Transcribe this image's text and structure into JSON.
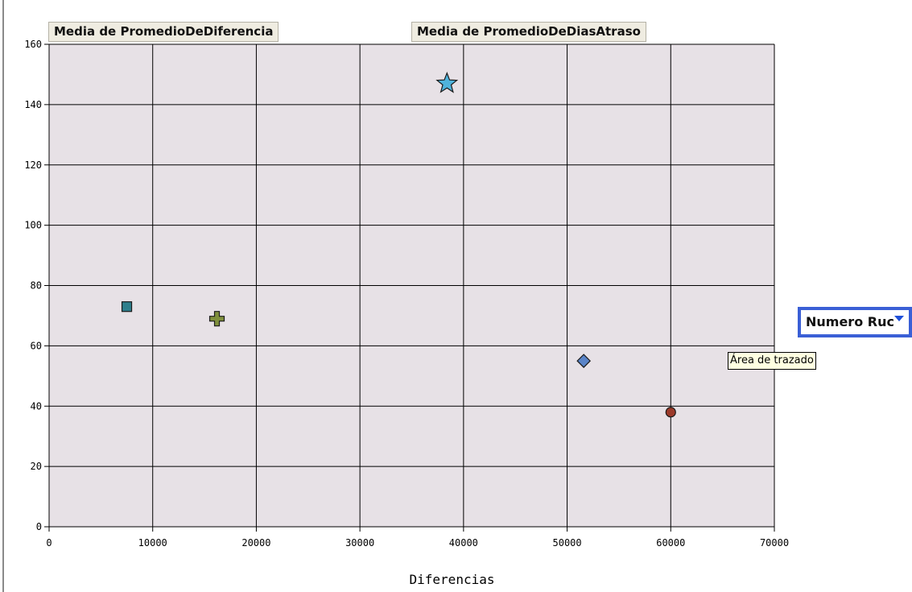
{
  "field_buttons": {
    "x_field": "Media de PromedioDeDiferencia",
    "y_field": "Media de PromedioDeDiasAtraso"
  },
  "legend_field": {
    "label": "Numero Ruc",
    "icon": "chevron-down-icon"
  },
  "tooltip": {
    "text": "Área de trazado"
  },
  "colors": {
    "plot_background": "#e7e1e6",
    "gridline": "#000000",
    "legend_field_border": "#3a5fd6"
  },
  "chart_data": {
    "type": "scatter",
    "title": "",
    "xlabel": "Diferencias",
    "ylabel": "",
    "xlim": [
      0,
      70000
    ],
    "ylim": [
      0,
      160
    ],
    "xticks": [
      0,
      10000,
      20000,
      30000,
      40000,
      50000,
      60000,
      70000
    ],
    "yticks": [
      0,
      20,
      40,
      60,
      80,
      100,
      120,
      140,
      160
    ],
    "grid": true,
    "points": [
      {
        "x": 7500,
        "y": 73,
        "marker": "square",
        "color": "#2f7f8c"
      },
      {
        "x": 16200,
        "y": 69,
        "marker": "cross",
        "color": "#7f8f3c"
      },
      {
        "x": 38400,
        "y": 147,
        "marker": "star",
        "color": "#4fb3dc"
      },
      {
        "x": 51600,
        "y": 55,
        "marker": "diamond",
        "color": "#5a84c8"
      },
      {
        "x": 60000,
        "y": 38,
        "marker": "circle",
        "color": "#9c3a2a"
      }
    ]
  }
}
